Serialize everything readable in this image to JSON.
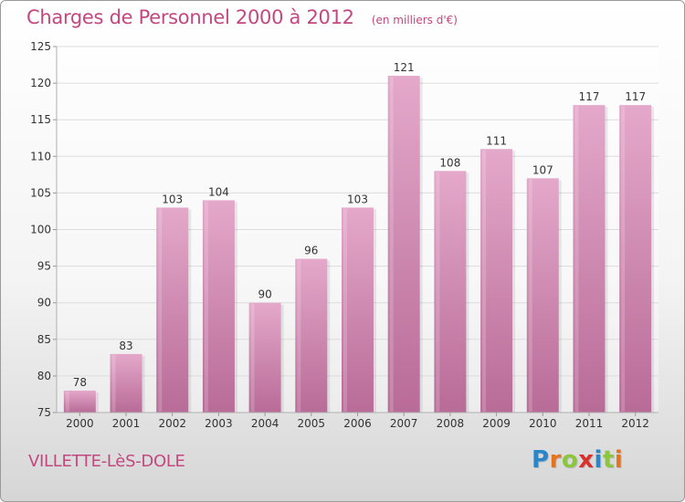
{
  "header": {
    "title": "Charges de Personnel 2000 à 2012",
    "unit": "(en milliers d'€)"
  },
  "footer": {
    "commune": "VILLETTE-LèS-DOLE",
    "logo_letters": [
      "P",
      "r",
      "o",
      "x",
      "i",
      "t",
      "i"
    ],
    "logo_colors": [
      "#2a86c8",
      "#e8731d",
      "#8cc63f",
      "#d9302c",
      "#2a86c8",
      "#8cc63f",
      "#e8731d"
    ]
  },
  "colors": {
    "bar": "#d68ab4",
    "bar_light": "#e4a8ca",
    "bar_dark": "#b86b97",
    "grid": "#dcdcdc",
    "axis_text": "#333333"
  },
  "chart_data": {
    "type": "bar",
    "categories": [
      "2000",
      "2001",
      "2002",
      "2003",
      "2004",
      "2005",
      "2006",
      "2007",
      "2008",
      "2009",
      "2010",
      "2011",
      "2012"
    ],
    "values": [
      78,
      83,
      103,
      104,
      90,
      96,
      103,
      121,
      108,
      111,
      107,
      117,
      117
    ],
    "ylim": [
      75,
      125
    ],
    "yticks": [
      75,
      80,
      85,
      90,
      95,
      100,
      105,
      110,
      115,
      120,
      125
    ],
    "grid": true,
    "data_labels": true
  }
}
